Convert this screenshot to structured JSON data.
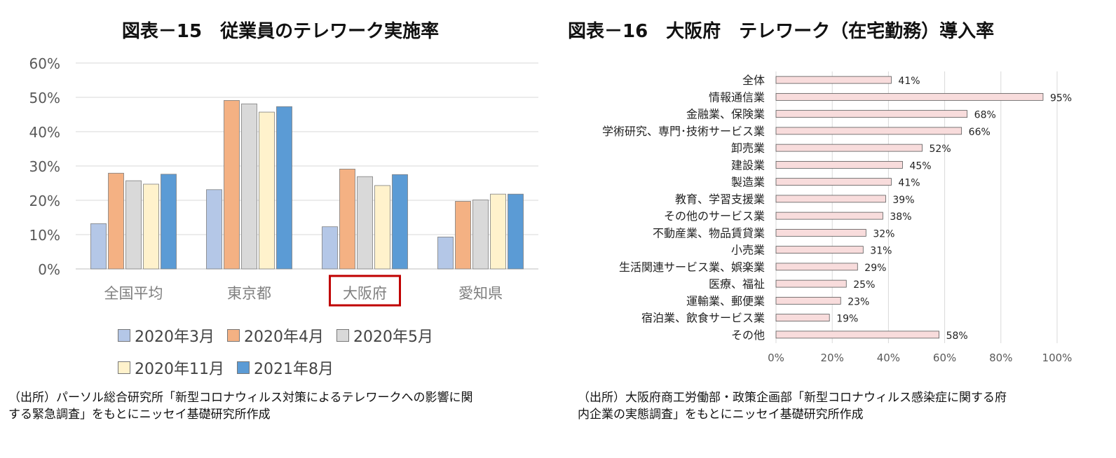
{
  "left": {
    "title": "図表－15　従業員のテレワーク実施率",
    "source_line1": "（出所）パーソル総合研究所「新型コロナウィルス対策によるテレワークへの影響に関",
    "source_line2": "する緊急調査」をもとにニッセイ基礎研究所作成",
    "highlight_category": "大阪府",
    "highlight_color": "#c00000"
  },
  "right": {
    "title": "図表－16　大阪府　テレワーク（在宅勤務）導入率",
    "source_line1": "（出所）大阪府商工労働部・政策企画部「新型コロナウィルス感染症に関する府",
    "source_line2": "内企業の実態調査」をもとにニッセイ基礎研究所作成"
  },
  "chart_data": [
    {
      "type": "bar",
      "title": "図表－15　従業員のテレワーク実施率",
      "categories": [
        "全国平均",
        "東京都",
        "大阪府",
        "愛知県"
      ],
      "series": [
        {
          "name": "2020年3月",
          "color": "#b4c7e7",
          "values": [
            13.2,
            23.1,
            12.3,
            9.3
          ]
        },
        {
          "name": "2020年4月",
          "color": "#f4b183",
          "values": [
            27.9,
            49.1,
            29.1,
            19.7
          ]
        },
        {
          "name": "2020年5月",
          "color": "#d9d9d9",
          "values": [
            25.7,
            48.1,
            26.9,
            20.1
          ]
        },
        {
          "name": "2020年11月",
          "color": "#fff2cc",
          "values": [
            24.7,
            45.7,
            24.3,
            21.8
          ]
        },
        {
          "name": "2021年8月",
          "color": "#5b9bd5",
          "values": [
            27.6,
            47.3,
            27.5,
            21.8
          ]
        }
      ],
      "ylim": [
        0,
        60
      ],
      "yticks": [
        "0%",
        "10%",
        "20%",
        "30%",
        "40%",
        "50%",
        "60%"
      ],
      "grid": true,
      "legend": "bottom"
    },
    {
      "type": "bar",
      "orientation": "horizontal",
      "title": "図表－16　大阪府　テレワーク（在宅勤務）導入率",
      "categories": [
        "全体",
        "情報通信業",
        "金融業、保険業",
        "学術研究、専門･技術サービス業",
        "卸売業",
        "建設業",
        "製造業",
        "教育、学習支援業",
        "その他のサービス業",
        "不動産業、物品賃貸業",
        "小売業",
        "生活関連サービス業、娯楽業",
        "医療、福祉",
        "運輸業、郵便業",
        "宿泊業、飲食サービス業",
        "その他"
      ],
      "values": [
        41,
        95,
        68,
        66,
        52,
        45,
        41,
        39,
        38,
        32,
        31,
        29,
        25,
        23,
        19,
        58
      ],
      "value_labels": [
        "41%",
        "95%",
        "68%",
        "66%",
        "52%",
        "45%",
        "41%",
        "39%",
        "38%",
        "32%",
        "31%",
        "29%",
        "25%",
        "23%",
        "19%",
        "58%"
      ],
      "bar_color": "#f8dcdc",
      "xlim": [
        0,
        100
      ],
      "xticks": [
        "0%",
        "20%",
        "40%",
        "60%",
        "80%",
        "100%"
      ],
      "grid": true
    }
  ]
}
